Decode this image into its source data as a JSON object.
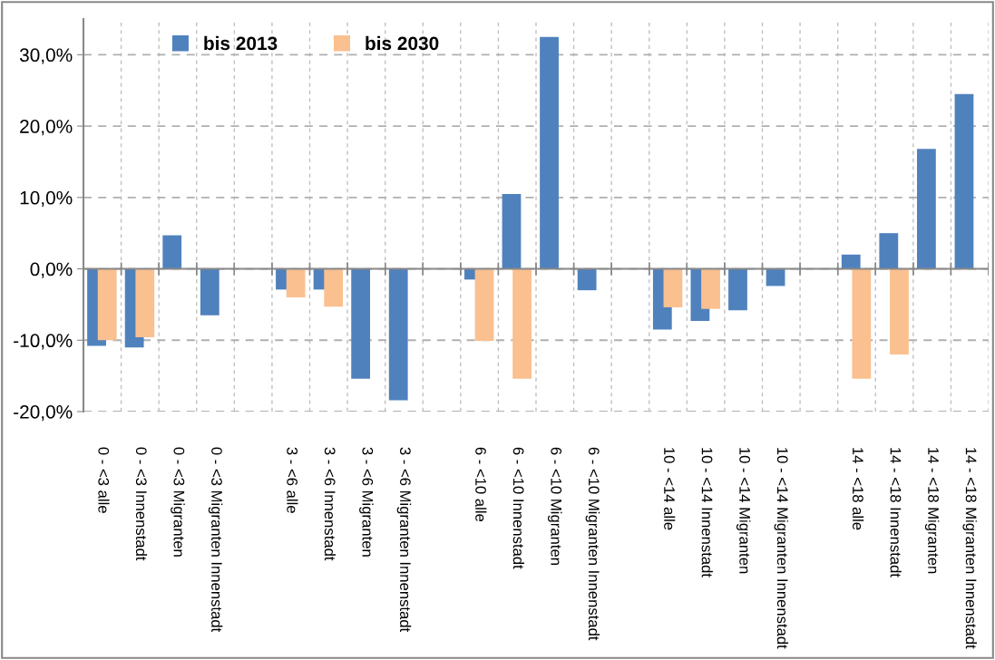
{
  "chart_data": {
    "type": "bar",
    "categories": [
      "0 - <3 alle",
      "0 - <3 Innenstadt",
      "0 - <3 Migranten",
      "0 - <3 Migranten Innenstadt",
      null,
      "3 - <6 alle",
      "3 - <6 Innenstadt",
      "3 - <6 Migranten",
      "3 - <6 Migranten Innenstadt",
      null,
      "6 - <10 alle",
      "6 - <10 Innenstadt",
      "6 - <10 Migranten",
      "6 - <10 Migranten Innenstadt",
      null,
      "10 - <14 alle",
      "10 - <14 Innenstadt",
      "10 - <14 Migranten",
      "10 - <14 Migranten Innenstadt",
      null,
      "14 - <18 alle",
      "14 - <18 Innenstadt",
      "14 - <18 Migranten",
      "14 - <18 Migranten Innenstadt"
    ],
    "series": [
      {
        "name": "bis 2013",
        "color": "#4f81bd",
        "values": [
          -10.8,
          -11.0,
          4.7,
          -6.5,
          null,
          -2.9,
          -2.9,
          -15.4,
          -18.4,
          null,
          -1.5,
          10.5,
          32.5,
          -3.0,
          null,
          -8.5,
          -7.3,
          -5.8,
          -2.4,
          null,
          2.0,
          5.0,
          16.8,
          24.5
        ]
      },
      {
        "name": "bis 2030",
        "color": "#fac090",
        "values": [
          -10.0,
          -9.6,
          null,
          null,
          null,
          -4.0,
          -5.3,
          null,
          null,
          null,
          -10.1,
          -15.4,
          null,
          null,
          null,
          -5.4,
          -5.6,
          null,
          null,
          null,
          -15.4,
          -12.0,
          null,
          null
        ]
      }
    ],
    "ylim": [
      -20,
      35
    ],
    "yticks": [
      {
        "value": -20,
        "label": "-20,0%"
      },
      {
        "value": -10,
        "label": "-10,0%"
      },
      {
        "value": 0,
        "label": "0,0%"
      },
      {
        "value": 10,
        "label": "10,0%"
      },
      {
        "value": 20,
        "label": "20,0%"
      },
      {
        "value": 30,
        "label": "30,0%"
      }
    ],
    "grid": true,
    "legend": "top left"
  }
}
